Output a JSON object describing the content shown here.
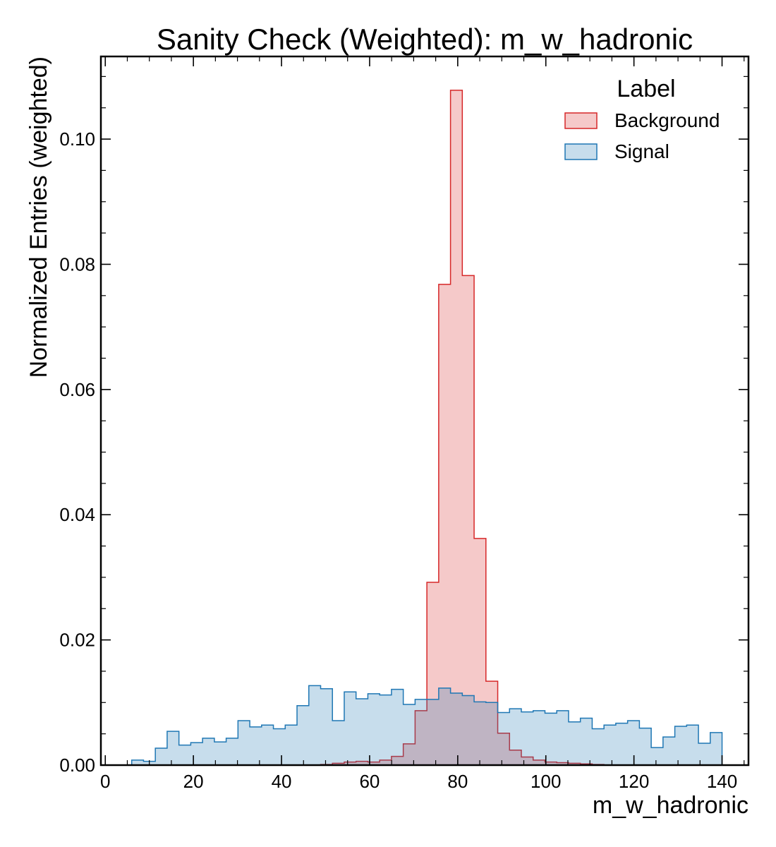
{
  "chart_data": {
    "type": "step-histogram",
    "title": "Sanity Check (Weighted): m_w_hadronic",
    "xlabel": "m_w_hadronic",
    "ylabel": "Normalized Entries (weighted)",
    "xlim": [
      -1,
      146
    ],
    "ylim": [
      0,
      0.1132
    ],
    "xticks": [
      0,
      20,
      40,
      60,
      80,
      100,
      120,
      140
    ],
    "xtick_labels": [
      "0",
      "20",
      "40",
      "60",
      "80",
      "100",
      "120",
      "140"
    ],
    "yticks": [
      0.0,
      0.02,
      0.04,
      0.06,
      0.08,
      0.1
    ],
    "ytick_labels": [
      "0.00",
      "0.02",
      "0.04",
      "0.06",
      "0.08",
      "0.10"
    ],
    "legend": {
      "title": "Label",
      "position": "top-right"
    },
    "bin_edges": [
      6.0,
      8.68,
      11.36,
      14.04,
      16.72,
      19.4,
      22.08,
      24.76,
      27.44,
      30.12,
      32.8,
      35.48,
      38.16,
      40.84,
      43.52,
      46.2,
      48.88,
      51.56,
      54.24,
      56.92,
      59.6,
      62.28,
      64.96,
      67.64,
      70.32,
      73.0,
      75.68,
      78.36,
      81.04,
      83.72,
      86.4,
      89.08,
      91.76,
      94.44,
      97.12,
      99.8,
      102.48,
      105.16,
      107.84,
      110.52,
      113.2,
      115.88,
      118.56,
      121.24,
      123.92,
      126.6,
      129.28,
      131.96,
      134.64,
      137.32,
      140.0
    ],
    "series": [
      {
        "name": "Background",
        "edge_color": "#d62728",
        "fill_color": "#f4c6c7",
        "values": [
          0.0,
          0.0,
          0.0,
          0.0,
          0.0,
          0.0,
          0.0,
          0.0,
          0.0,
          0.0,
          0.0,
          0.0,
          0.0,
          0.0,
          0.0,
          0.0,
          0.0001,
          0.0003,
          0.0005,
          0.0006,
          0.0005,
          0.0008,
          0.0014,
          0.0034,
          0.0087,
          0.0292,
          0.0768,
          0.1078,
          0.0782,
          0.0362,
          0.0134,
          0.0051,
          0.0024,
          0.0013,
          0.0008,
          0.0005,
          0.0004,
          0.0003,
          0.0002,
          0.0001,
          0.0,
          0.0,
          0.0,
          0.0,
          0.0,
          0.0,
          0.0,
          0.0,
          0.0,
          0.0
        ]
      },
      {
        "name": "Signal",
        "edge_color": "#1f77b4",
        "fill_color": "#c6dbec",
        "values": [
          0.0008,
          0.0006,
          0.0027,
          0.0054,
          0.0032,
          0.0036,
          0.0043,
          0.0037,
          0.0043,
          0.0071,
          0.0061,
          0.0064,
          0.0058,
          0.0064,
          0.0095,
          0.0127,
          0.0122,
          0.0071,
          0.0117,
          0.0106,
          0.0114,
          0.0112,
          0.0121,
          0.0097,
          0.0105,
          0.0105,
          0.0123,
          0.0115,
          0.0111,
          0.0101,
          0.01,
          0.0084,
          0.009,
          0.0085,
          0.0087,
          0.0083,
          0.0087,
          0.0069,
          0.0075,
          0.0058,
          0.0064,
          0.0067,
          0.0071,
          0.0059,
          0.0028,
          0.0045,
          0.0062,
          0.0064,
          0.0035,
          0.0052
        ]
      }
    ]
  }
}
